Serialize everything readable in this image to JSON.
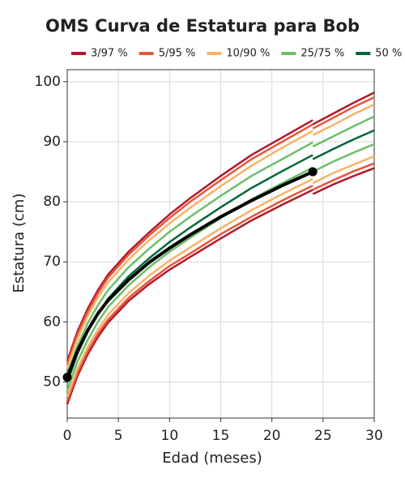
{
  "chart_data": {
    "type": "line",
    "title": "OMS Curva de Estatura para Bob",
    "x_label": "Edad (meses)",
    "y_label": "Estatura (cm)",
    "x": [
      0,
      1,
      2,
      3,
      4,
      6,
      8,
      10,
      12,
      15,
      18,
      21,
      24,
      24,
      24,
      26,
      28,
      30
    ],
    "series": [
      {
        "name": "3/97 %",
        "color": "#b2182b",
        "values": [
          46.3,
          51.0,
          54.6,
          57.5,
          59.9,
          63.5,
          66.3,
          68.7,
          70.8,
          73.9,
          76.9,
          79.5,
          82.0,
          null,
          81.3,
          82.9,
          84.3,
          85.6
        ],
        "upper_values": [
          53.5,
          58.4,
          62.2,
          65.3,
          67.9,
          71.7,
          74.9,
          77.9,
          80.6,
          84.3,
          87.8,
          90.7,
          93.6,
          null,
          92.9,
          94.7,
          96.5,
          98.2
        ]
      },
      {
        "name": "5/95 %",
        "color": "#e6553a",
        "values": [
          46.8,
          51.5,
          55.1,
          58.0,
          60.4,
          64.0,
          66.8,
          69.3,
          71.4,
          74.6,
          77.5,
          80.2,
          82.7,
          null,
          82.0,
          83.6,
          85.1,
          86.4
        ],
        "upper_values": [
          53.0,
          57.9,
          61.7,
          64.8,
          67.4,
          71.2,
          74.4,
          77.3,
          80.0,
          83.6,
          87.1,
          90.0,
          92.9,
          null,
          92.2,
          94.0,
          95.8,
          97.4
        ]
      },
      {
        "name": "10/90 %",
        "color": "#f9b266",
        "values": [
          47.5,
          52.2,
          55.8,
          58.7,
          61.2,
          64.8,
          67.7,
          70.2,
          72.4,
          75.6,
          78.6,
          81.3,
          83.8,
          null,
          83.1,
          84.8,
          86.2,
          87.6
        ],
        "upper_values": [
          52.3,
          57.2,
          61.0,
          64.1,
          66.6,
          70.4,
          73.6,
          76.4,
          79.0,
          82.6,
          86.0,
          89.0,
          91.8,
          null,
          91.1,
          92.8,
          94.6,
          96.2
        ]
      },
      {
        "name": "25/75 %",
        "color": "#6dbf67",
        "values": [
          48.6,
          53.4,
          57.0,
          60.0,
          62.5,
          66.1,
          69.1,
          71.7,
          74.0,
          77.3,
          80.4,
          83.1,
          85.7,
          null,
          85.0,
          86.7,
          88.2,
          89.6
        ],
        "upper_values": [
          51.2,
          56.0,
          59.8,
          62.8,
          65.3,
          69.1,
          72.2,
          75.0,
          77.5,
          81.0,
          84.3,
          87.1,
          89.9,
          null,
          89.2,
          90.9,
          92.6,
          94.2
        ]
      },
      {
        "name": "50 %",
        "color": "#006837",
        "values": [
          49.9,
          54.7,
          58.4,
          61.4,
          63.9,
          67.6,
          70.6,
          73.3,
          75.7,
          79.1,
          82.3,
          85.1,
          87.8,
          null,
          87.1,
          88.8,
          90.4,
          91.9
        ]
      }
    ],
    "subject": {
      "color": "#000000",
      "x": [
        0,
        1,
        2,
        3,
        4,
        6,
        8,
        10,
        12,
        15,
        18,
        21,
        24
      ],
      "values": [
        50.8,
        55.2,
        58.6,
        61.4,
        63.6,
        67.0,
        69.9,
        72.3,
        74.5,
        77.5,
        80.2,
        82.7,
        85.0
      ]
    },
    "xlim": [
      0,
      30
    ],
    "xticks": [
      0,
      5,
      10,
      15,
      20,
      25,
      30
    ],
    "ylim": [
      44,
      102
    ],
    "yticks": [
      50,
      60,
      70,
      80,
      90,
      100
    ],
    "grid": true
  }
}
